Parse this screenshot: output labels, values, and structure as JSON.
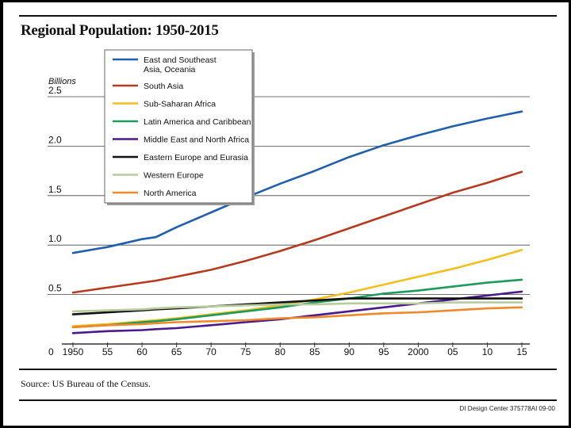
{
  "chart_data": {
    "type": "line",
    "title": "Regional Population: 1950-2015",
    "ylabel": "Billions",
    "xlabel": "",
    "ylim": [
      0,
      2.5
    ],
    "xlim": [
      1950,
      2015
    ],
    "y_ticks": [
      {
        "value": 0,
        "label": "0"
      },
      {
        "value": 0.5,
        "label": "0.5"
      },
      {
        "value": 1.0,
        "label": "1.0"
      },
      {
        "value": 1.5,
        "label": "1.5"
      },
      {
        "value": 2.0,
        "label": "2.0"
      },
      {
        "value": 2.5,
        "label": "2.5"
      }
    ],
    "x_ticks": [
      {
        "value": 1950,
        "label": "1950"
      },
      {
        "value": 1955,
        "label": "55"
      },
      {
        "value": 1960,
        "label": "60"
      },
      {
        "value": 1965,
        "label": "65"
      },
      {
        "value": 1970,
        "label": "70"
      },
      {
        "value": 1975,
        "label": "75"
      },
      {
        "value": 1980,
        "label": "80"
      },
      {
        "value": 1985,
        "label": "85"
      },
      {
        "value": 1990,
        "label": "90"
      },
      {
        "value": 1995,
        "label": "95"
      },
      {
        "value": 2000,
        "label": "2000"
      },
      {
        "value": 2005,
        "label": "05"
      },
      {
        "value": 2010,
        "label": "10"
      },
      {
        "value": 2015,
        "label": "15"
      }
    ],
    "x": [
      1950,
      1955,
      1960,
      1962,
      1965,
      1970,
      1975,
      1980,
      1985,
      1990,
      1995,
      2000,
      2005,
      2010,
      2015
    ],
    "series": [
      {
        "name": "East and Southeast Asia, Oceania",
        "legend_lines": [
          "East and Southeast",
          "Asia, Oceania"
        ],
        "color": "#1f5fae",
        "values": [
          0.92,
          0.98,
          1.06,
          1.08,
          1.18,
          1.33,
          1.48,
          1.62,
          1.75,
          1.89,
          2.01,
          2.11,
          2.2,
          2.28,
          2.35
        ]
      },
      {
        "name": "South Asia",
        "legend_lines": [
          "South Asia"
        ],
        "color": "#b83a1e",
        "values": [
          0.52,
          0.57,
          0.62,
          0.64,
          0.68,
          0.75,
          0.84,
          0.94,
          1.05,
          1.17,
          1.29,
          1.41,
          1.53,
          1.63,
          1.74
        ]
      },
      {
        "name": "Sub-Saharan Africa",
        "legend_lines": [
          "Sub-Saharan Africa"
        ],
        "color": "#f2bf1c",
        "values": [
          0.18,
          0.2,
          0.23,
          0.24,
          0.26,
          0.3,
          0.34,
          0.39,
          0.45,
          0.52,
          0.6,
          0.68,
          0.76,
          0.85,
          0.95
        ]
      },
      {
        "name": "Latin America and Caribbean",
        "legend_lines": [
          "Latin America and Caribbean"
        ],
        "color": "#1d9a5c",
        "values": [
          0.17,
          0.19,
          0.22,
          0.23,
          0.25,
          0.29,
          0.33,
          0.37,
          0.42,
          0.46,
          0.51,
          0.54,
          0.58,
          0.62,
          0.65
        ]
      },
      {
        "name": "Middle East and North Africa",
        "legend_lines": [
          "Middle East and North Africa"
        ],
        "color": "#4a1a8c",
        "values": [
          0.11,
          0.13,
          0.14,
          0.15,
          0.16,
          0.19,
          0.22,
          0.25,
          0.29,
          0.33,
          0.37,
          0.41,
          0.45,
          0.49,
          0.53
        ]
      },
      {
        "name": "Eastern Europe and Eurasia",
        "legend_lines": [
          "Eastern Europe and Eurasia"
        ],
        "color": "#111111",
        "values": [
          0.3,
          0.32,
          0.34,
          0.35,
          0.36,
          0.38,
          0.4,
          0.42,
          0.44,
          0.46,
          0.46,
          0.46,
          0.46,
          0.46,
          0.46
        ]
      },
      {
        "name": "Western Europe",
        "legend_lines": [
          "Western Europe"
        ],
        "color": "#b7cc9d",
        "values": [
          0.33,
          0.34,
          0.35,
          0.36,
          0.37,
          0.38,
          0.39,
          0.4,
          0.4,
          0.41,
          0.41,
          0.41,
          0.42,
          0.42,
          0.42
        ]
      },
      {
        "name": "North America",
        "legend_lines": [
          "North America"
        ],
        "color": "#ef8a2b",
        "values": [
          0.17,
          0.19,
          0.2,
          0.21,
          0.22,
          0.23,
          0.24,
          0.26,
          0.27,
          0.29,
          0.31,
          0.32,
          0.34,
          0.36,
          0.37
        ]
      }
    ]
  },
  "footer": {
    "source": "Source: US Bureau of the Census.",
    "credit": "DI Design Center  375778AI 09-00"
  }
}
